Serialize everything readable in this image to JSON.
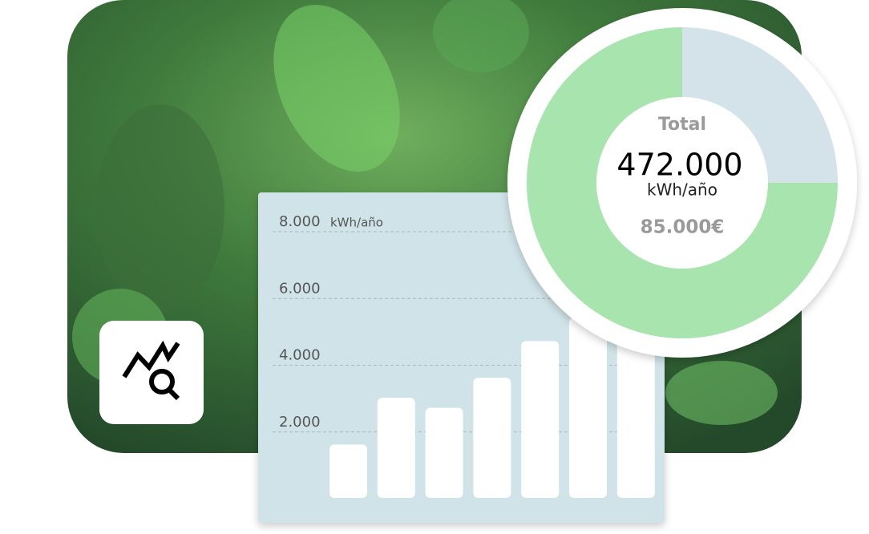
{
  "chart_data": [
    {
      "type": "bar",
      "y_label": "kWh/año",
      "categories": [
        null,
        null,
        null,
        null,
        null,
        null,
        null
      ],
      "values": [
        1600,
        3000,
        2700,
        3600,
        4700,
        5400,
        5800
      ],
      "color": "#ffffff",
      "ylim": [
        0,
        8000
      ],
      "yticks": [
        {
          "value": 2000,
          "label": "2.000"
        },
        {
          "value": 4000,
          "label": "4.000"
        },
        {
          "value": 6000,
          "label": "6.000"
        },
        {
          "value": 8000,
          "label": "8.000"
        }
      ],
      "grid": true
    },
    {
      "type": "pie",
      "values": [
        25,
        75
      ],
      "colors": [
        "#d3e3e9",
        "#a8e4ad"
      ],
      "center_label": "Total",
      "center_value": "472.000",
      "center_unit": "kWh/año",
      "center_note": "85.000€"
    }
  ]
}
